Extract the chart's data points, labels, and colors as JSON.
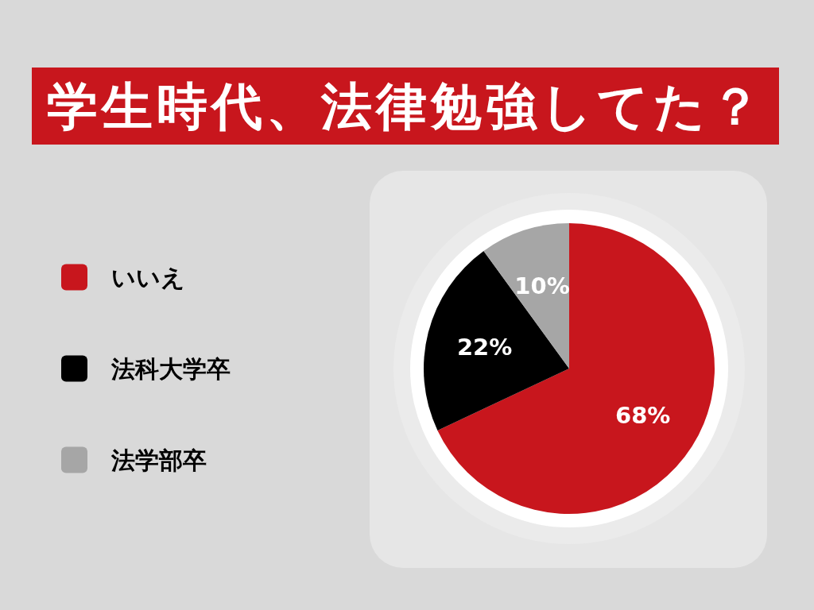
{
  "chart_data": {
    "type": "pie",
    "title": "学生時代、法律勉強してた？",
    "categories": [
      "いいえ",
      "法科大学卒",
      "法学部卒"
    ],
    "values": [
      68,
      22,
      10
    ],
    "colors": [
      "#c8161d",
      "#000000",
      "#a6a6a6"
    ],
    "value_labels": [
      "68%",
      "22%",
      "10%"
    ],
    "legend": "left"
  }
}
